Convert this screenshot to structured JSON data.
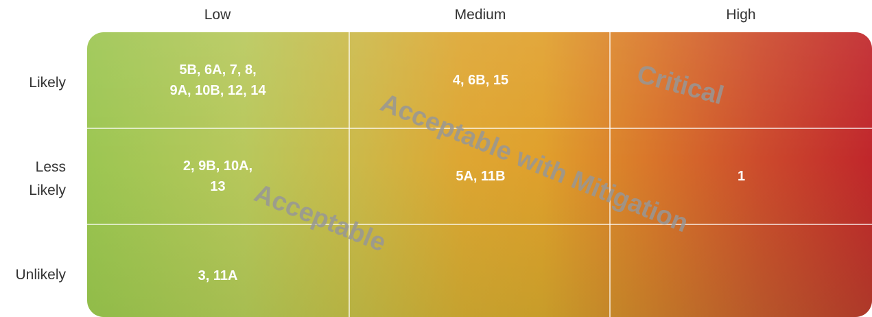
{
  "columns": [
    "Low",
    "Medium",
    "High"
  ],
  "rows": [
    {
      "label": [
        "Likely"
      ],
      "cells": [
        [
          "5B, 6A, 7, 8,",
          "9A, 10B, 12, 14"
        ],
        [
          "4, 6B, 15"
        ],
        []
      ]
    },
    {
      "label": [
        "Less",
        "Likely"
      ],
      "cells": [
        [
          "2, 9B, 10A,",
          "13"
        ],
        [
          "5A, 11B"
        ],
        [
          "1"
        ]
      ]
    },
    {
      "label": [
        "Unlikely"
      ],
      "cells": [
        [
          "3, 11A"
        ],
        [],
        []
      ]
    }
  ],
  "zones": [
    "Critical",
    "Acceptable with Mitigation",
    "Acceptable"
  ]
}
